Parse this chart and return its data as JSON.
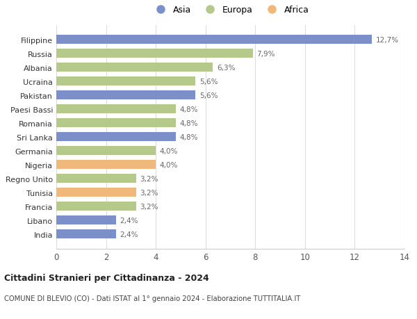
{
  "categories": [
    "Filippine",
    "Russia",
    "Albania",
    "Ucraina",
    "Pakistan",
    "Paesi Bassi",
    "Romania",
    "Sri Lanka",
    "Germania",
    "Nigeria",
    "Regno Unito",
    "Tunisia",
    "Francia",
    "Libano",
    "India"
  ],
  "values": [
    12.7,
    7.9,
    6.3,
    5.6,
    5.6,
    4.8,
    4.8,
    4.8,
    4.0,
    4.0,
    3.2,
    3.2,
    3.2,
    2.4,
    2.4
  ],
  "labels": [
    "12,7%",
    "7,9%",
    "6,3%",
    "5,6%",
    "5,6%",
    "4,8%",
    "4,8%",
    "4,8%",
    "4,0%",
    "4,0%",
    "3,2%",
    "3,2%",
    "3,2%",
    "2,4%",
    "2,4%"
  ],
  "continents": [
    "Asia",
    "Europa",
    "Europa",
    "Europa",
    "Asia",
    "Europa",
    "Europa",
    "Asia",
    "Europa",
    "Africa",
    "Europa",
    "Africa",
    "Europa",
    "Asia",
    "Asia"
  ],
  "colors": {
    "Asia": "#7b8fc8",
    "Europa": "#b5c98a",
    "Africa": "#f0b87a"
  },
  "title1": "Cittadini Stranieri per Cittadinanza - 2024",
  "title2": "COMUNE DI BLEVIO (CO) - Dati ISTAT al 1° gennaio 2024 - Elaborazione TUTTITALIA.IT",
  "xlim": [
    0,
    14
  ],
  "xticks": [
    0,
    2,
    4,
    6,
    8,
    10,
    12,
    14
  ],
  "background_color": "#ffffff",
  "grid_color": "#dddddd",
  "bar_height": 0.65,
  "legend_order": [
    "Asia",
    "Europa",
    "Africa"
  ]
}
